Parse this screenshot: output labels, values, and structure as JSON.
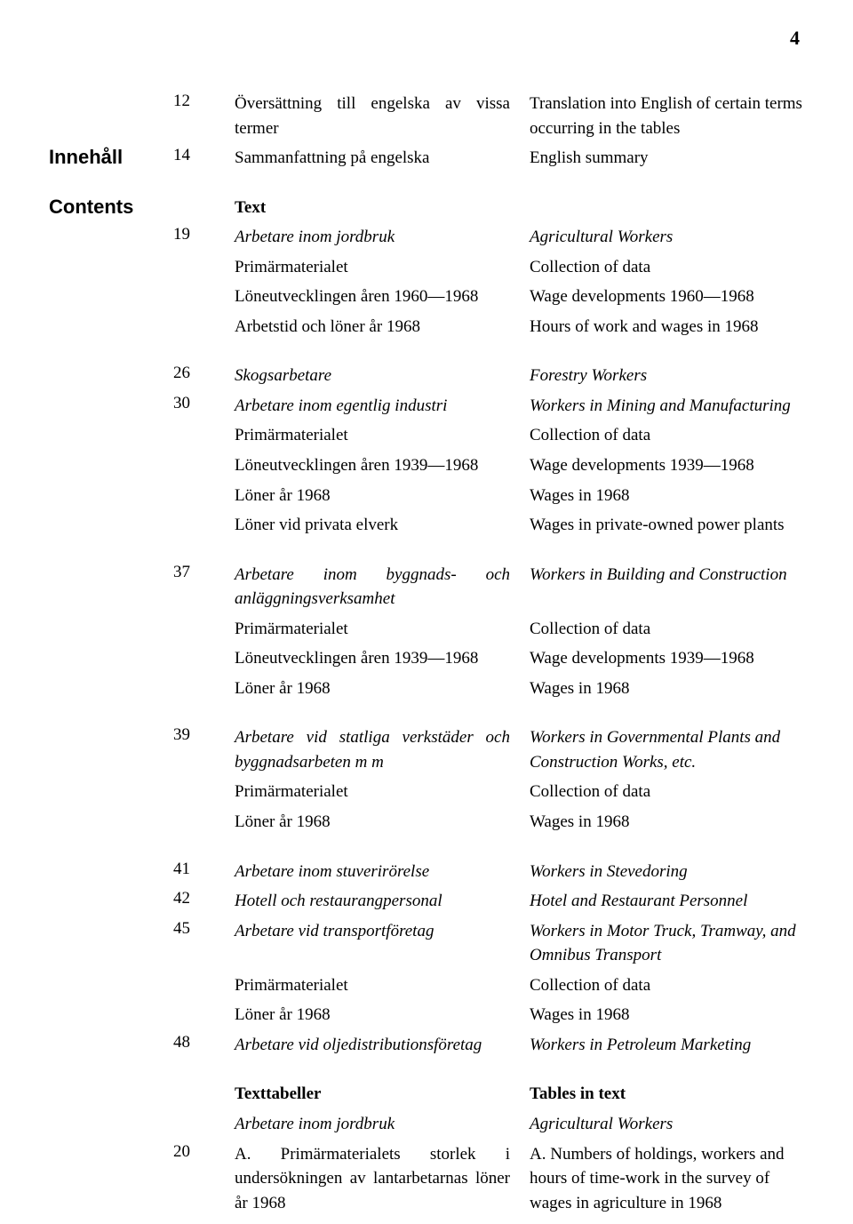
{
  "page_number": "4",
  "labels": {
    "innehall": "Innehåll",
    "contents": "Contents"
  },
  "rows": [
    {
      "type": "first",
      "page": "12",
      "left": "Översättning till engelska av vissa termer",
      "right": "Translation into English of certain terms occurring in the tables"
    },
    {
      "label": "innehall",
      "page": "14",
      "left": "Sammanfattning på engelska",
      "right": "English summary"
    },
    {
      "type": "section",
      "label": "contents",
      "left": "Text",
      "left_bold": true
    },
    {
      "page": "19",
      "left": "Arbetare inom jordbruk",
      "left_italic": true,
      "right": "Agricultural Workers",
      "right_italic": true
    },
    {
      "left": "Primärmaterialet",
      "right": "Collection of data"
    },
    {
      "left": "Löneutvecklingen åren 1960—1968",
      "right": "Wage developments 1960—1968"
    },
    {
      "left": "Arbetstid och löner år 1968",
      "right": "Hours of work and wages in 1968"
    },
    {
      "type": "section",
      "page": "26",
      "left": "Skogsarbetare",
      "left_italic": true,
      "right": "Forestry Workers",
      "right_italic": true
    },
    {
      "page": "30",
      "left": "Arbetare inom egentlig industri",
      "left_italic": true,
      "right": "Workers in Mining and Manufacturing",
      "right_italic": true
    },
    {
      "left": "Primärmaterialet",
      "right": "Collection of data"
    },
    {
      "left": "Löneutvecklingen åren 1939—1968",
      "right": "Wage developments 1939—1968"
    },
    {
      "left": "Löner år 1968",
      "right": "Wages in 1968"
    },
    {
      "left": "Löner vid privata elverk",
      "right": "Wages in private-owned power plants"
    },
    {
      "type": "section",
      "page": "37",
      "left": "Arbetare inom byggnads- och anläggningsverksamhet",
      "left_italic": true,
      "right": "Workers in Building and Construction",
      "right_italic": true
    },
    {
      "left": "Primärmaterialet",
      "right": "Collection of data"
    },
    {
      "left": "Löneutvecklingen åren 1939—1968",
      "right": "Wage developments 1939—1968"
    },
    {
      "left": "Löner år 1968",
      "right": "Wages in 1968"
    },
    {
      "type": "section",
      "page": "39",
      "left": "Arbetare vid statliga verkstäder och byggnadsarbeten m m",
      "left_italic": true,
      "right": "Workers in Governmental Plants and Construction Works, etc.",
      "right_italic": true
    },
    {
      "left": "Primärmaterialet",
      "right": "Collection of data"
    },
    {
      "left": "Löner år 1968",
      "right": "Wages in 1968"
    },
    {
      "type": "section",
      "page": "41",
      "left": "Arbetare inom stuverirörelse",
      "left_italic": true,
      "right": "Workers in Stevedoring",
      "right_italic": true
    },
    {
      "page": "42",
      "left": "Hotell och restaurangpersonal",
      "left_italic": true,
      "right": "Hotel and Restaurant Personnel",
      "right_italic": true
    },
    {
      "page": "45",
      "left": "Arbetare vid transportföretag",
      "left_italic": true,
      "right": "Workers in Motor Truck, Tramway, and Omnibus Transport",
      "right_italic": true
    },
    {
      "left": "Primärmaterialet",
      "right": "Collection of data"
    },
    {
      "left": "Löner år 1968",
      "right": "Wages in 1968"
    },
    {
      "page": "48",
      "left": "Arbetare vid oljedistributionsföretag",
      "left_italic": true,
      "right": "Workers in Petroleum Marketing",
      "right_italic": true
    },
    {
      "type": "section",
      "left": "Texttabeller",
      "left_bold": true,
      "right": "Tables in text",
      "right_bold": true
    },
    {
      "left": "Arbetare inom jordbruk",
      "left_italic": true,
      "right": "Agricultural Workers",
      "right_italic": true
    },
    {
      "page": "20",
      "left": "A. Primärmaterialets storlek i undersökningen av lantarbetarnas löner år 1968",
      "right": "A. Numbers of holdings, workers and hours of time-work in the survey of wages in agriculture in 1968"
    }
  ]
}
